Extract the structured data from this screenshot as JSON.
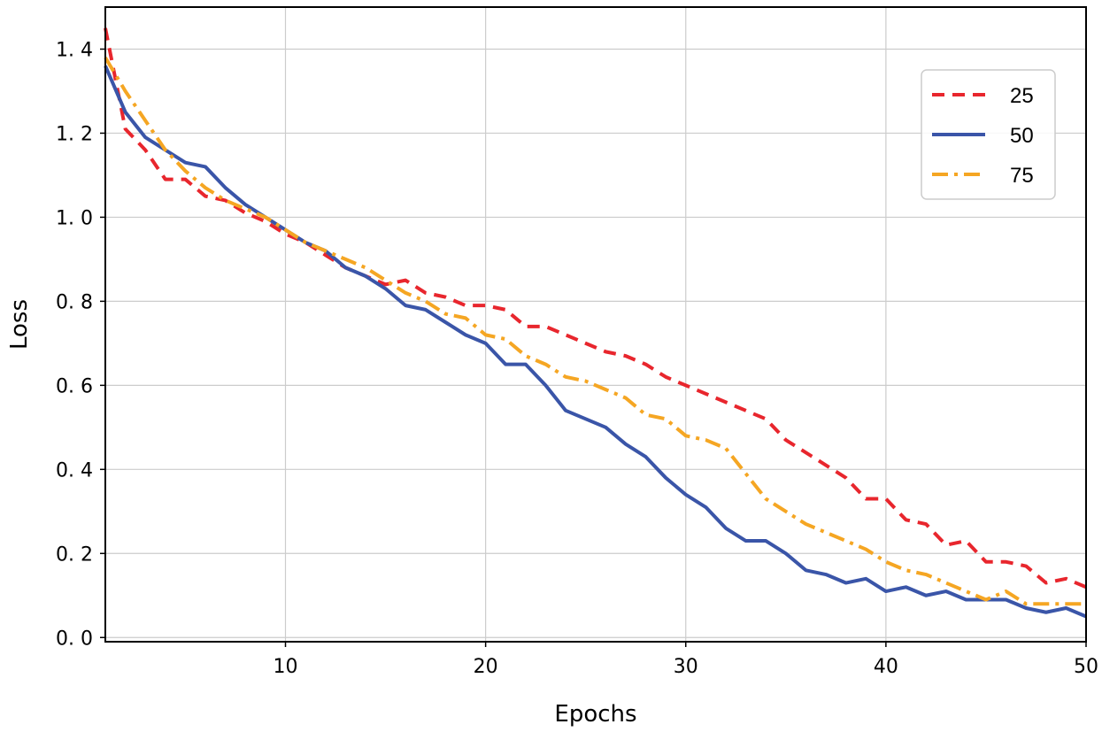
{
  "chart_data": {
    "type": "line",
    "xlabel": "Epochs",
    "ylabel": "Loss",
    "xlim": [
      1,
      50
    ],
    "ylim": [
      -0.01,
      1.5
    ],
    "x_ticks": [
      10,
      20,
      30,
      40,
      50
    ],
    "x_tick_labels": [
      "10",
      "20",
      "30",
      "40",
      "50"
    ],
    "y_ticks": [
      0.0,
      0.2,
      0.4,
      0.6,
      0.8,
      1.0,
      1.2,
      1.4
    ],
    "y_tick_labels": [
      "0. 0",
      "0. 2",
      "0. 4",
      "0. 6",
      "0. 8",
      "1. 0",
      "1. 2",
      "1. 4"
    ],
    "grid": true,
    "legend_position": "top-right",
    "x": [
      1,
      2,
      3,
      4,
      5,
      6,
      7,
      8,
      9,
      10,
      11,
      12,
      13,
      14,
      15,
      16,
      17,
      18,
      19,
      20,
      21,
      22,
      23,
      24,
      25,
      26,
      27,
      28,
      29,
      30,
      31,
      32,
      33,
      34,
      35,
      36,
      37,
      38,
      39,
      40,
      41,
      42,
      43,
      44,
      45,
      46,
      47,
      48,
      49,
      50
    ],
    "series": [
      {
        "name": "25",
        "color": "#e8262d",
        "style": "dashed",
        "values": [
          1.45,
          1.21,
          1.16,
          1.09,
          1.09,
          1.05,
          1.04,
          1.01,
          0.99,
          0.96,
          0.94,
          0.91,
          0.88,
          0.86,
          0.84,
          0.85,
          0.82,
          0.81,
          0.79,
          0.79,
          0.78,
          0.74,
          0.74,
          0.72,
          0.7,
          0.68,
          0.67,
          0.65,
          0.62,
          0.6,
          0.58,
          0.56,
          0.54,
          0.52,
          0.47,
          0.44,
          0.41,
          0.38,
          0.33,
          0.33,
          0.28,
          0.27,
          0.22,
          0.23,
          0.18,
          0.18,
          0.17,
          0.13,
          0.14,
          0.12
        ]
      },
      {
        "name": "50",
        "color": "#3a55a8",
        "style": "solid",
        "values": [
          1.36,
          1.25,
          1.19,
          1.16,
          1.13,
          1.12,
          1.07,
          1.03,
          1.0,
          0.97,
          0.94,
          0.92,
          0.88,
          0.86,
          0.83,
          0.79,
          0.78,
          0.75,
          0.72,
          0.7,
          0.65,
          0.65,
          0.6,
          0.54,
          0.52,
          0.5,
          0.46,
          0.43,
          0.38,
          0.34,
          0.31,
          0.26,
          0.23,
          0.23,
          0.2,
          0.16,
          0.15,
          0.13,
          0.14,
          0.11,
          0.12,
          0.1,
          0.11,
          0.09,
          0.09,
          0.09,
          0.07,
          0.06,
          0.07,
          0.05
        ]
      },
      {
        "name": "75",
        "color": "#f5a623",
        "style": "dashdot",
        "values": [
          1.38,
          1.3,
          1.23,
          1.16,
          1.11,
          1.07,
          1.04,
          1.02,
          1.0,
          0.97,
          0.94,
          0.92,
          0.9,
          0.88,
          0.85,
          0.82,
          0.8,
          0.77,
          0.76,
          0.72,
          0.71,
          0.67,
          0.65,
          0.62,
          0.61,
          0.59,
          0.57,
          0.53,
          0.52,
          0.48,
          0.47,
          0.45,
          0.39,
          0.33,
          0.3,
          0.27,
          0.25,
          0.23,
          0.21,
          0.18,
          0.16,
          0.15,
          0.13,
          0.11,
          0.09,
          0.11,
          0.08,
          0.08,
          0.08,
          0.08
        ]
      }
    ]
  }
}
